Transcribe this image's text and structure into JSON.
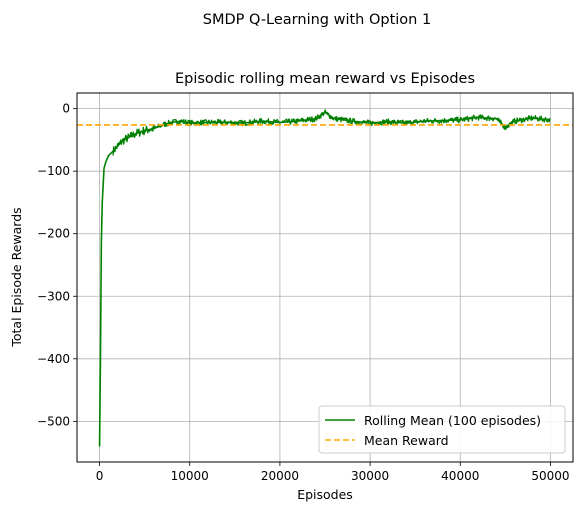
{
  "chart_data": {
    "type": "line",
    "suptitle": "SMDP Q-Learning with Option 1",
    "title": "Episodic rolling mean reward vs Episodes",
    "xlabel": "Episodes",
    "ylabel": "Total Episode Rewards",
    "xlim": [
      -2500,
      52500
    ],
    "ylim": [
      -565,
      25
    ],
    "xticks": [
      0,
      10000,
      20000,
      30000,
      40000,
      50000
    ],
    "yticks": [
      -500,
      -400,
      -300,
      -200,
      -100,
      0
    ],
    "xtick_labels": [
      "0",
      "10000",
      "20000",
      "30000",
      "40000",
      "50000"
    ],
    "ytick_labels": [
      "−500",
      "−400",
      "−300",
      "−200",
      "−100",
      "0"
    ],
    "grid": true,
    "legend_position": "lower-right",
    "series": [
      {
        "name": "Rolling Mean (100 episodes)",
        "color": "#008000",
        "style": "solid",
        "x": [
          0,
          100,
          200,
          300,
          500,
          700,
          1000,
          1500,
          2000,
          2500,
          3000,
          3500,
          4000,
          5000,
          6000,
          7000,
          8000,
          9000,
          10000,
          12000,
          14000,
          16000,
          18000,
          20000,
          22000,
          24000,
          25000,
          26000,
          28000,
          30000,
          32000,
          34000,
          36000,
          38000,
          40000,
          42000,
          44000,
          45000,
          46000,
          48000,
          50000
        ],
        "y": [
          -540,
          -400,
          -215,
          -150,
          -95,
          -85,
          -75,
          -68,
          -60,
          -52,
          -48,
          -44,
          -40,
          -35,
          -32,
          -26,
          -22,
          -20,
          -23,
          -22,
          -22,
          -23,
          -20,
          -22,
          -20,
          -16,
          -6,
          -16,
          -20,
          -23,
          -21,
          -23,
          -20,
          -19,
          -18,
          -14,
          -16,
          -30,
          -20,
          -15,
          -18
        ]
      },
      {
        "name": "Mean Reward",
        "color": "#ffa500",
        "style": "dashed",
        "y_constant": -26
      }
    ]
  }
}
